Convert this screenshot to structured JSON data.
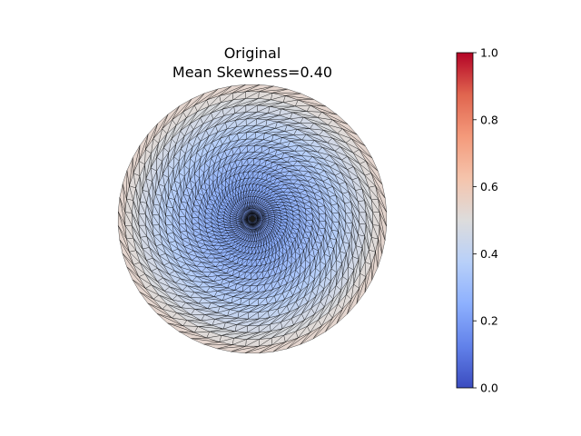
{
  "chart_data": {
    "type": "heatmap",
    "plot_kind": "triangular mesh on a disk colored by element skewness",
    "title": "Original",
    "subtitle": "Mean Skewness=0.40",
    "mean_skewness": 0.4,
    "mesh": {
      "shape": "disk",
      "radial_rings": 21,
      "nodes_per_ring": 60,
      "twist": "spiral",
      "skewness_center": 0.2,
      "skewness_edge": 0.55
    },
    "colorbar": {
      "colormap": "coolwarm",
      "vmin": 0.0,
      "vmax": 1.0,
      "ticks": [
        "0.0",
        "0.2",
        "0.4",
        "0.6",
        "0.8",
        "1.0"
      ],
      "stops": [
        "#3b4cc0",
        "#6282ea",
        "#8db0fe",
        "#b8d0f9",
        "#dddcdc",
        "#f5c4ac",
        "#f49a7b",
        "#e0654f",
        "#b40426"
      ]
    },
    "edge_color": "#000000",
    "grid": false,
    "legend": "none"
  }
}
